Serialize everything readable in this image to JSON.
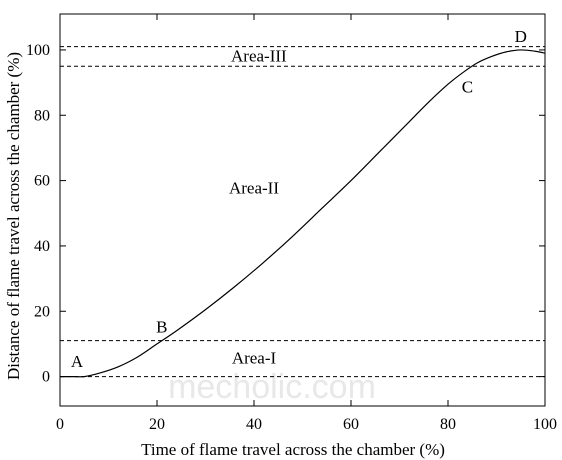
{
  "chart_data": {
    "type": "line",
    "title": "",
    "xlabel": "Time of flame travel across the chamber (%)",
    "ylabel": "Distance of flame travel across the chamber (%)",
    "xlim": [
      0,
      100
    ],
    "ylim": [
      -9,
      111
    ],
    "x_ticks": [
      0,
      20,
      40,
      60,
      80,
      100
    ],
    "y_ticks": [
      0,
      20,
      40,
      60,
      80,
      100
    ],
    "grid": false,
    "legend": "none",
    "series": [
      {
        "color": "#000000",
        "x": [
          0,
          3,
          5,
          8,
          12,
          16,
          20,
          24,
          30,
          36,
          42,
          48,
          54,
          60,
          66,
          72,
          76,
          80,
          83,
          86,
          89,
          92,
          95,
          98,
          100
        ],
        "y": [
          0,
          0,
          0,
          1,
          3,
          6,
          10,
          14,
          20.5,
          27.5,
          35,
          43,
          51.5,
          60,
          69,
          78,
          84,
          89.5,
          93,
          96,
          98,
          99.4,
          100,
          99.6,
          99
        ]
      }
    ],
    "reference_lines": [
      {
        "y": 11,
        "style": "dashed"
      },
      {
        "y": 0,
        "style": "dashed"
      },
      {
        "y": 95,
        "style": "dashed"
      },
      {
        "y": 101,
        "style": "dashed"
      }
    ],
    "annotations": [
      {
        "text": "A",
        "x": 3.5,
        "y": 3
      },
      {
        "text": "B",
        "x": 21,
        "y": 13.5
      },
      {
        "text": "C",
        "x": 84,
        "y": 87
      },
      {
        "text": "D",
        "x": 95,
        "y": 102.5
      },
      {
        "text": "Area-I",
        "x": 40,
        "y": 4
      },
      {
        "text": "Area-II",
        "x": 40,
        "y": 56
      },
      {
        "text": "Area-III",
        "x": 41,
        "y": 96.5
      }
    ]
  },
  "watermark": "mecholic.com"
}
